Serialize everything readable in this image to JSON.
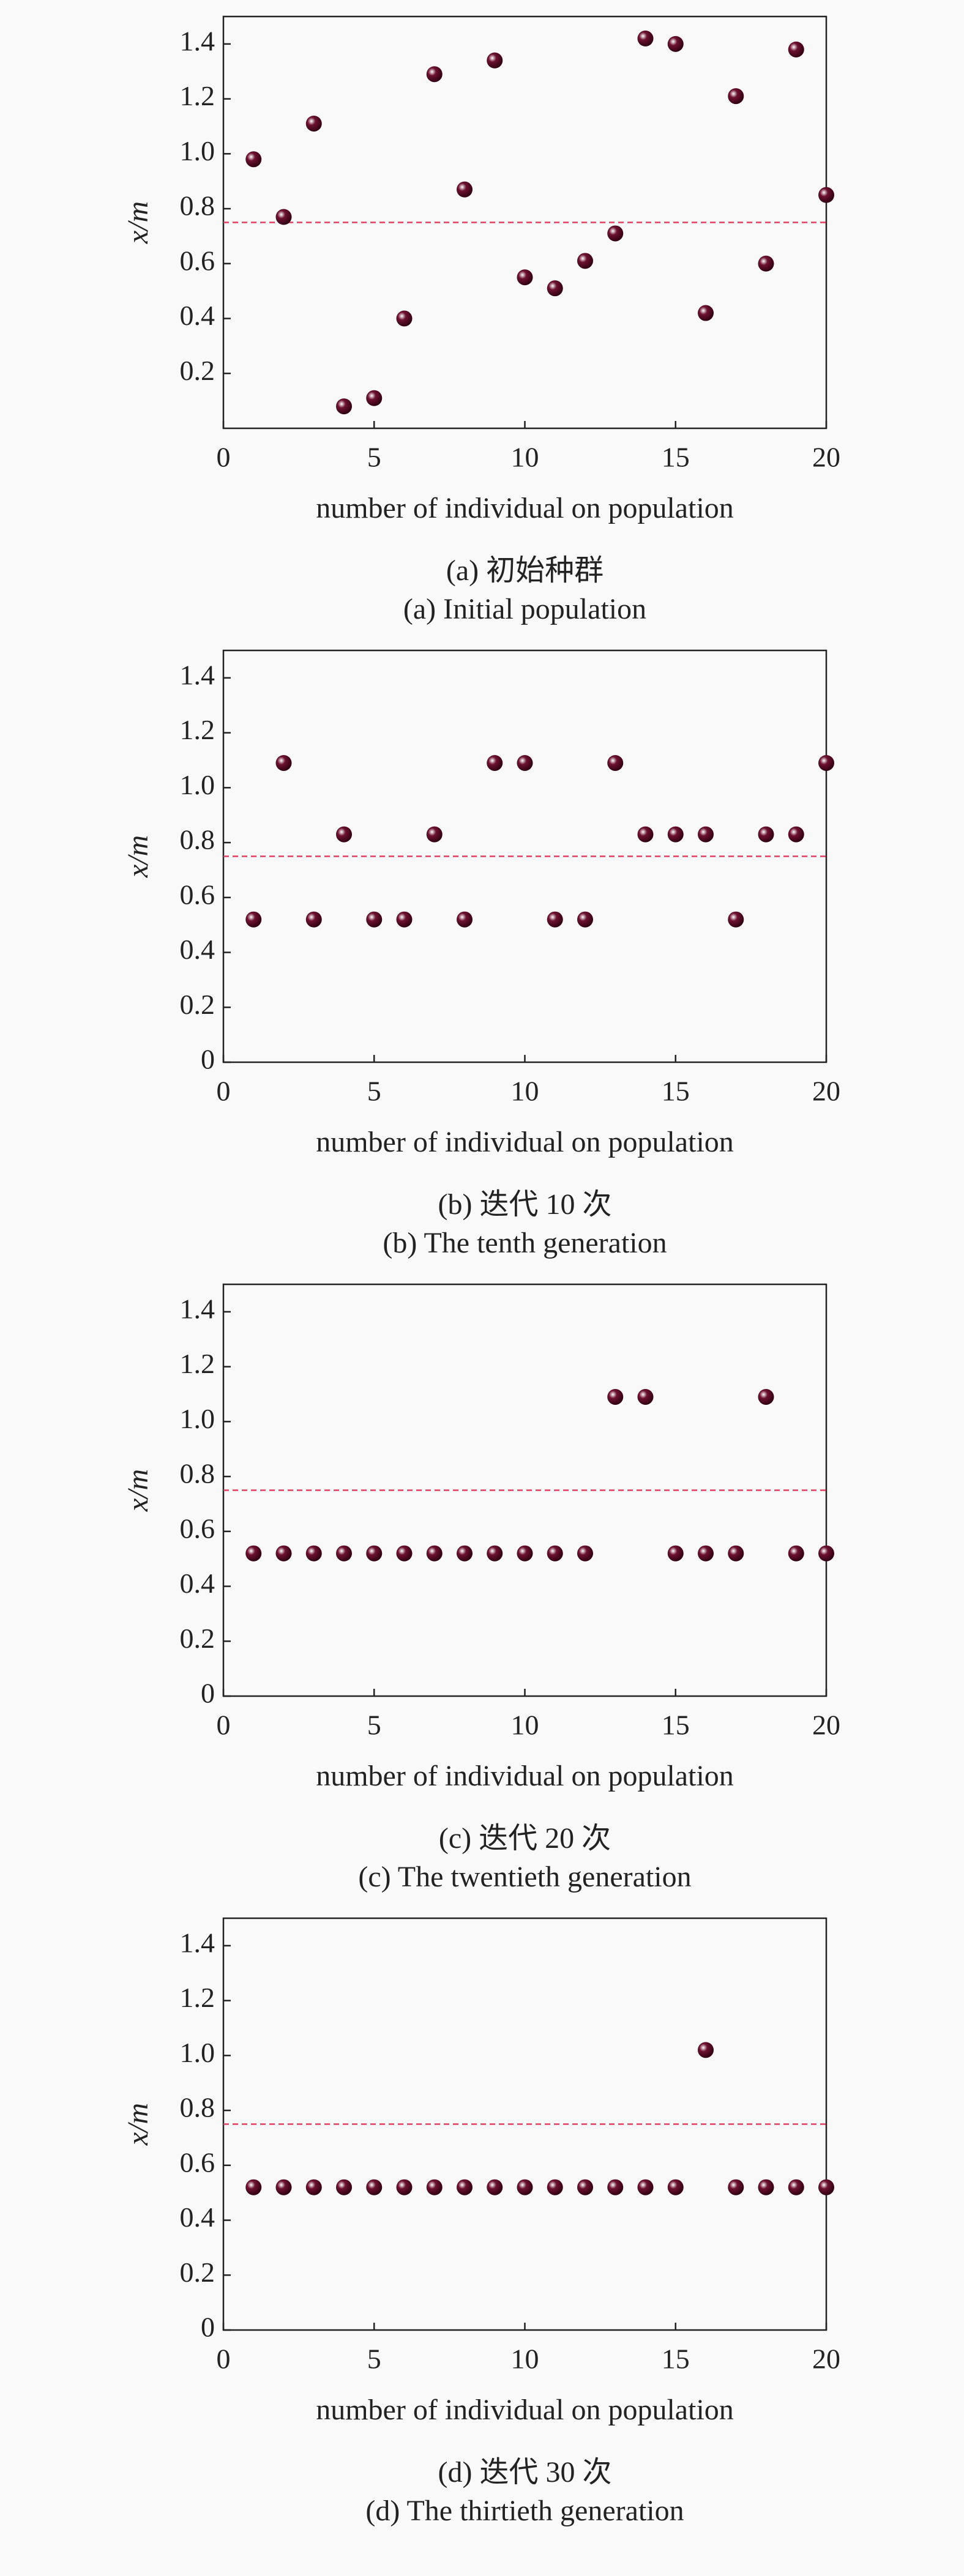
{
  "chart_data": [
    {
      "type": "scatter",
      "caption_cn": "(a) 初始种群",
      "caption_en": "(a) Initial population",
      "x_label": "number of individual on population",
      "y_label": "x/m",
      "x": [
        1,
        2,
        3,
        4,
        5,
        6,
        7,
        8,
        9,
        10,
        11,
        12,
        13,
        14,
        15,
        16,
        17,
        18,
        19,
        20
      ],
      "values": [
        0.98,
        0.77,
        1.11,
        0.08,
        0.11,
        0.4,
        1.29,
        0.87,
        1.34,
        0.55,
        0.51,
        0.61,
        0.71,
        1.42,
        1.4,
        0.42,
        1.21,
        0.6,
        1.38,
        0.85
      ],
      "color": "#6e1230",
      "reference_y": 0.75,
      "reference_color": "#e0405f",
      "xlim": [
        0,
        20
      ],
      "xticks": [
        0,
        5,
        10,
        15,
        20
      ],
      "ylim": [
        0,
        1.5
      ],
      "yticks": [
        0.2,
        0.4,
        0.6,
        0.8,
        {
          "value": 1,
          "label": "1.0"
        },
        1.2,
        1.4
      ]
    },
    {
      "type": "scatter",
      "caption_cn": "(b) 迭代 10 次",
      "caption_en": "(b) The tenth generation",
      "x_label": "number of individual on population",
      "y_label": "x/m",
      "x": [
        1,
        2,
        3,
        4,
        5,
        6,
        7,
        8,
        9,
        10,
        11,
        12,
        13,
        14,
        15,
        16,
        17,
        18,
        19,
        20
      ],
      "values": [
        0.52,
        1.09,
        0.52,
        0.83,
        0.52,
        0.52,
        0.83,
        0.52,
        1.09,
        1.09,
        0.52,
        0.52,
        1.09,
        0.83,
        0.83,
        0.83,
        0.52,
        0.83,
        0.83,
        1.09
      ],
      "color": "#6e1230",
      "reference_y": 0.75,
      "reference_color": "#e0405f",
      "xlim": [
        0,
        20
      ],
      "xticks": [
        0,
        5,
        10,
        15,
        20
      ],
      "ylim": [
        0,
        1.5
      ],
      "yticks": [
        0,
        0.2,
        0.4,
        0.6,
        0.8,
        {
          "value": 1,
          "label": "1.0"
        },
        1.2,
        1.4
      ]
    },
    {
      "type": "scatter",
      "caption_cn": "(c) 迭代 20 次",
      "caption_en": "(c) The twentieth generation",
      "x_label": "number of individual on population",
      "y_label": "x/m",
      "x": [
        1,
        2,
        3,
        4,
        5,
        6,
        7,
        8,
        9,
        10,
        11,
        12,
        13,
        14,
        15,
        16,
        17,
        18,
        19,
        20
      ],
      "values": [
        0.52,
        0.52,
        0.52,
        0.52,
        0.52,
        0.52,
        0.52,
        0.52,
        0.52,
        0.52,
        0.52,
        0.52,
        1.09,
        1.09,
        0.52,
        0.52,
        0.52,
        1.09,
        0.52,
        0.52
      ],
      "color": "#6e1230",
      "reference_y": 0.75,
      "reference_color": "#e0405f",
      "xlim": [
        0,
        20
      ],
      "xticks": [
        0,
        5,
        10,
        15,
        20
      ],
      "ylim": [
        0,
        1.5
      ],
      "yticks": [
        0,
        0.2,
        0.4,
        0.6,
        0.8,
        {
          "value": 1,
          "label": "1.0"
        },
        1.2,
        1.4
      ]
    },
    {
      "type": "scatter",
      "caption_cn": "(d) 迭代 30 次",
      "caption_en": "(d) The thirtieth generation",
      "x_label": "number of individual on population",
      "y_label": "x/m",
      "x": [
        1,
        2,
        3,
        4,
        5,
        6,
        7,
        8,
        9,
        10,
        11,
        12,
        13,
        14,
        15,
        16,
        17,
        18,
        19,
        20
      ],
      "values": [
        0.52,
        0.52,
        0.52,
        0.52,
        0.52,
        0.52,
        0.52,
        0.52,
        0.52,
        0.52,
        0.52,
        0.52,
        0.52,
        0.52,
        0.52,
        1.02,
        0.52,
        0.52,
        0.52,
        0.52
      ],
      "color": "#6e1230",
      "reference_y": 0.75,
      "reference_color": "#e0405f",
      "xlim": [
        0,
        20
      ],
      "xticks": [
        0,
        5,
        10,
        15,
        20
      ],
      "ylim": [
        0,
        1.5
      ],
      "yticks": [
        0,
        0.2,
        0.4,
        0.6,
        0.8,
        {
          "value": 1,
          "label": "1.0"
        },
        1.2,
        1.4
      ]
    }
  ]
}
